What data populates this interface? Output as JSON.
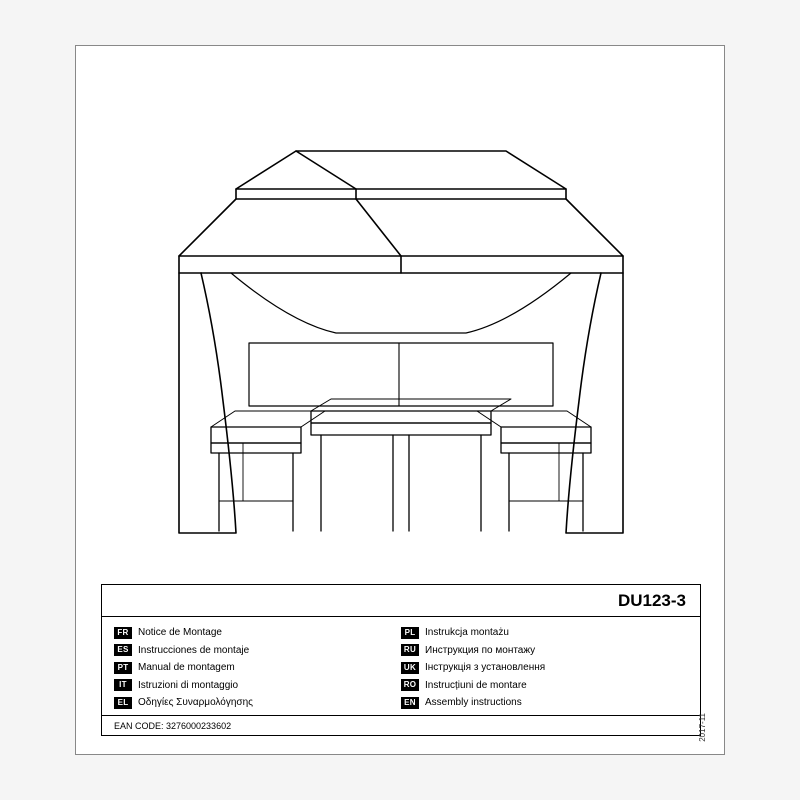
{
  "model_number": "DU123-3",
  "ean_label": "EAN CODE: 3276000233602",
  "date_stamp": "2017-11",
  "languages_left": [
    {
      "code": "FR",
      "label": "Notice de Montage"
    },
    {
      "code": "ES",
      "label": "Instrucciones de montaje"
    },
    {
      "code": "PT",
      "label": "Manual de montagem"
    },
    {
      "code": "IT",
      "label": "Istruzioni di montaggio"
    },
    {
      "code": "EL",
      "label": "Οδηγίες Συναρμολόγησης"
    }
  ],
  "languages_right": [
    {
      "code": "PL",
      "label": "Instrukcja montażu"
    },
    {
      "code": "RU",
      "label": "Инструкция по монтажу"
    },
    {
      "code": "UK",
      "label": "Інструкція з установлення"
    },
    {
      "code": "RO",
      "label": "Instrucțiuni de montare"
    },
    {
      "code": "EN",
      "label": "Assembly instructions"
    }
  ],
  "illustration": {
    "stroke_color": "#000000",
    "stroke_width_main": 1.6,
    "stroke_width_thin": 1.1,
    "fill": "none"
  }
}
